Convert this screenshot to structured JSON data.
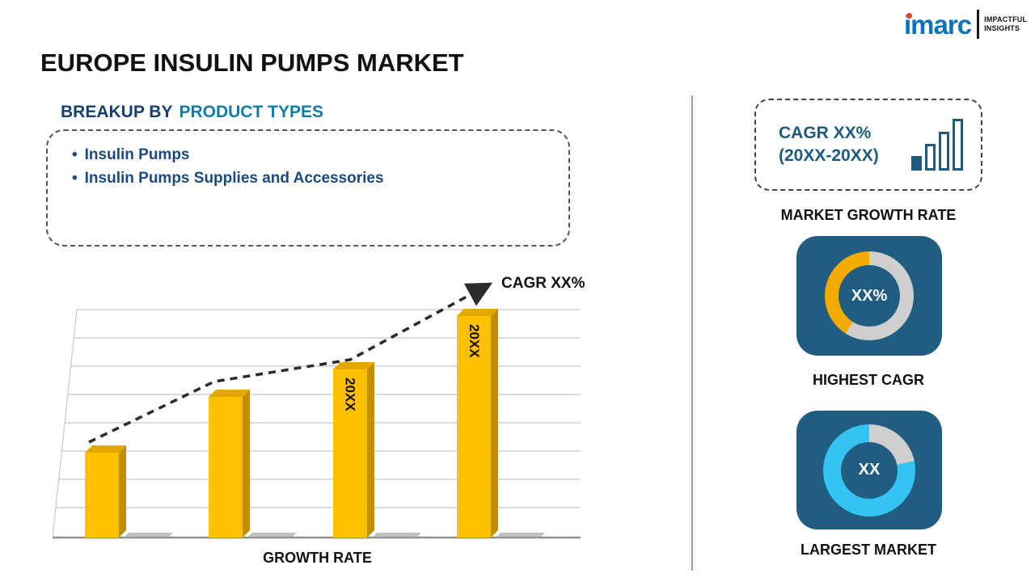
{
  "logo": {
    "brand": "imarc",
    "tagline_line1": "IMPACTFUL",
    "tagline_line2": "INSIGHTS"
  },
  "title": "EUROPE INSULIN PUMPS MARKET",
  "breakup": {
    "heading_prefix": "BREAKUP BY",
    "heading_accent": "PRODUCT TYPES",
    "items": [
      "Insulin Pumps",
      "Insulin Pumps Supplies and Accessories"
    ]
  },
  "chart_data": {
    "type": "bar",
    "title": "",
    "xlabel": "GROWTH RATE",
    "ylabel": "",
    "bar_labels": [
      "",
      "",
      "20XX",
      "20XX"
    ],
    "values": [
      37,
      61,
      73,
      96
    ],
    "values_note": "placeholder template chart - bar heights are relative % of plot height, no numeric axis shown",
    "trend_line_label": "CAGR XX%",
    "trend_style": "dashed-arrow-ascending",
    "bar_color": "#FFC000",
    "grid": "horizontal-lines"
  },
  "right_panel": {
    "cagr_box": {
      "line1": "CAGR XX%",
      "line2": "(20XX-20XX)"
    },
    "market_growth_label": "MARKET GROWTH RATE",
    "highest_cagr": {
      "value": "XX%",
      "label": "HIGHEST CAGR"
    },
    "largest_market": {
      "value": "XX",
      "label": "LARGEST MARKET"
    }
  },
  "colors": {
    "brand_blue": "#0D74BB",
    "accent_navy": "#205D80",
    "heading_navy": "#16406E",
    "heading_teal": "#0D7CA8",
    "bullet_navy": "#1B4A7E",
    "bar_yellow": "#FFC000",
    "donut_orange": "#F3AB00",
    "donut_cyan": "#35C4F2",
    "donut_gray": "#CFCFCF"
  }
}
